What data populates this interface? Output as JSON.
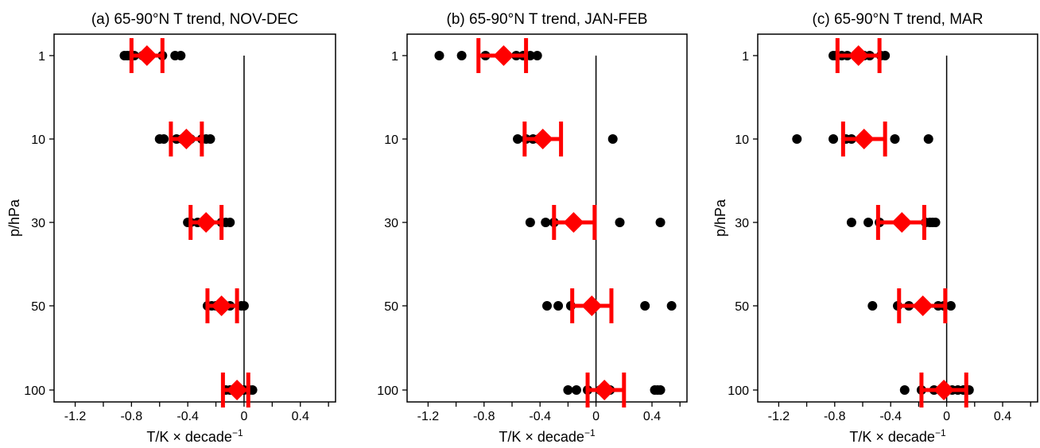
{
  "chart_data": [
    {
      "type": "scatter",
      "title": "(a) 65-90°N T trend, NOV-DEC",
      "xlabel": "T/K × decade",
      "xlabel_sup": "−1",
      "ylabel": "p/hPa",
      "xlim": [
        -1.35,
        0.65
      ],
      "xticks": [
        -1.2,
        -0.8,
        -0.4,
        0,
        0.4
      ],
      "xtick_labels": [
        "-1.2",
        "-0.8",
        "-0.4",
        "0",
        "0.4"
      ],
      "levels": [
        "1",
        "10",
        "30",
        "50",
        "100"
      ],
      "points": [
        [
          -0.85,
          -0.83,
          -0.81,
          -0.78,
          -0.72,
          -0.58,
          -0.49,
          -0.45
        ],
        [
          -0.6,
          -0.57,
          -0.48,
          -0.44,
          -0.38,
          -0.3,
          -0.27,
          -0.24
        ],
        [
          -0.4,
          -0.38,
          -0.33,
          -0.28,
          -0.25,
          -0.16,
          -0.13,
          -0.1
        ],
        [
          -0.26,
          -0.23,
          -0.2,
          -0.18,
          -0.14,
          -0.1,
          -0.02,
          0.0
        ],
        [
          -0.13,
          -0.1,
          -0.08,
          -0.05,
          -0.02,
          0.0,
          0.04,
          0.06
        ]
      ],
      "means": [
        -0.69,
        -0.41,
        -0.27,
        -0.16,
        -0.05
      ],
      "ci_low": [
        -0.8,
        -0.52,
        -0.38,
        -0.26,
        -0.15
      ],
      "ci_high": [
        -0.58,
        -0.3,
        -0.16,
        -0.05,
        0.03
      ]
    },
    {
      "type": "scatter",
      "title": "(b) 65-90°N T trend, JAN-FEB",
      "xlabel": "T/K × decade",
      "xlabel_sup": "−1",
      "ylabel": "",
      "xlim": [
        -1.35,
        0.65
      ],
      "xticks": [
        -1.2,
        -0.8,
        -0.4,
        0,
        0.4
      ],
      "xtick_labels": [
        "-1.2",
        "-0.8",
        "-0.4",
        "0",
        "0.4"
      ],
      "levels": [
        "1",
        "10",
        "30",
        "50",
        "100"
      ],
      "points": [
        [
          -1.12,
          -0.96,
          -0.79,
          -0.65,
          -0.57,
          -0.52,
          -0.47,
          -0.42
        ],
        [
          -0.56,
          -0.5,
          -0.45,
          -0.41,
          -0.37,
          0.12
        ],
        [
          -0.47,
          -0.36,
          -0.3,
          -0.16,
          0.17,
          0.46
        ],
        [
          -0.35,
          -0.27,
          -0.18,
          -0.03,
          0.35,
          0.54
        ],
        [
          -0.2,
          -0.14,
          -0.06,
          0.03,
          0.1,
          0.42,
          0.44,
          0.46
        ]
      ],
      "means": [
        -0.66,
        -0.38,
        -0.16,
        -0.03,
        0.06
      ],
      "ci_low": [
        -0.84,
        -0.51,
        -0.3,
        -0.17,
        -0.06
      ],
      "ci_high": [
        -0.5,
        -0.25,
        -0.01,
        0.11,
        0.2
      ]
    },
    {
      "type": "scatter",
      "title": "(c) 65-90°N T trend, MAR",
      "xlabel": "T/K × decade",
      "xlabel_sup": "−1",
      "ylabel": "p/hPa",
      "xlim": [
        -1.35,
        0.65
      ],
      "xticks": [
        -1.2,
        -0.8,
        -0.4,
        0,
        0.4
      ],
      "xtick_labels": [
        "-1.2",
        "-0.8",
        "-0.4",
        "0",
        "0.4"
      ],
      "levels": [
        "1",
        "10",
        "30",
        "50",
        "100"
      ],
      "points": [
        [
          -0.81,
          -0.79,
          -0.75,
          -0.71,
          -0.65,
          -0.59,
          -0.55,
          -0.47,
          -0.44
        ],
        [
          -1.07,
          -0.81,
          -0.72,
          -0.68,
          -0.6,
          -0.57,
          -0.37,
          -0.13
        ],
        [
          -0.68,
          -0.56,
          -0.48,
          -0.3,
          -0.15,
          -0.12,
          -0.1,
          -0.08
        ],
        [
          -0.53,
          -0.35,
          -0.27,
          -0.16,
          -0.06,
          -0.02,
          0.03
        ],
        [
          -0.3,
          -0.18,
          -0.09,
          -0.03,
          0.04,
          0.08,
          0.12,
          0.16
        ]
      ],
      "means": [
        -0.63,
        -0.59,
        -0.32,
        -0.17,
        -0.02
      ],
      "ci_low": [
        -0.78,
        -0.74,
        -0.49,
        -0.34,
        -0.18
      ],
      "ci_high": [
        -0.48,
        -0.44,
        -0.16,
        -0.01,
        0.14
      ]
    }
  ]
}
